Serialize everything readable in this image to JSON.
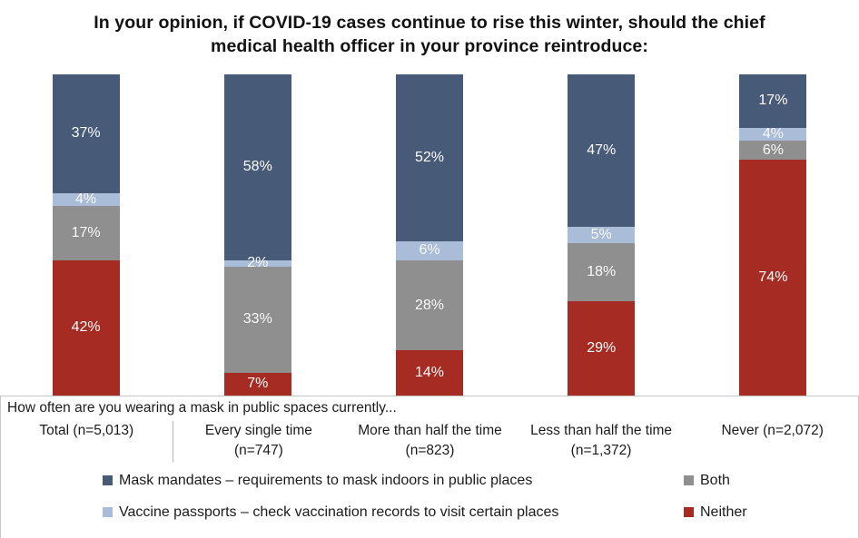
{
  "chart_data": {
    "type": "bar",
    "stacked": true,
    "orientation": "vertical",
    "title": "In your opinion, if COVID-19 cases continue to rise this winter, should the chief medical health officer in your province reintroduce:",
    "xlabel": "How often are you wearing a mask in public spaces currently...",
    "categories": [
      "Total (n=5,013)",
      "Every single time (n=747)",
      "More than half the time (n=823)",
      "Less than half the time (n=1,372)",
      "Never (n=2,072)"
    ],
    "series": [
      {
        "key": "mask-mandates",
        "name": "Mask mandates – requirements to mask indoors in public places",
        "color": "#475a78",
        "values": [
          37,
          58,
          52,
          47,
          17
        ]
      },
      {
        "key": "vaccine-passports",
        "name": "Vaccine passports – check vaccination records to visit certain places",
        "color": "#a9bdd9",
        "values": [
          4,
          2,
          6,
          5,
          4
        ]
      },
      {
        "key": "both",
        "name": "Both",
        "color": "#8f8f8f",
        "values": [
          17,
          33,
          28,
          18,
          6
        ]
      },
      {
        "key": "neither",
        "name": "Neither",
        "color": "#a62b22",
        "values": [
          42,
          7,
          14,
          29,
          74
        ]
      }
    ],
    "value_suffix": "%",
    "ylim": [
      0,
      100
    ],
    "grid": false,
    "legend_position": "bottom",
    "legend_order": [
      0,
      2,
      1,
      3
    ],
    "label_color": "#ffffff",
    "divider_after_category_index": 0
  }
}
